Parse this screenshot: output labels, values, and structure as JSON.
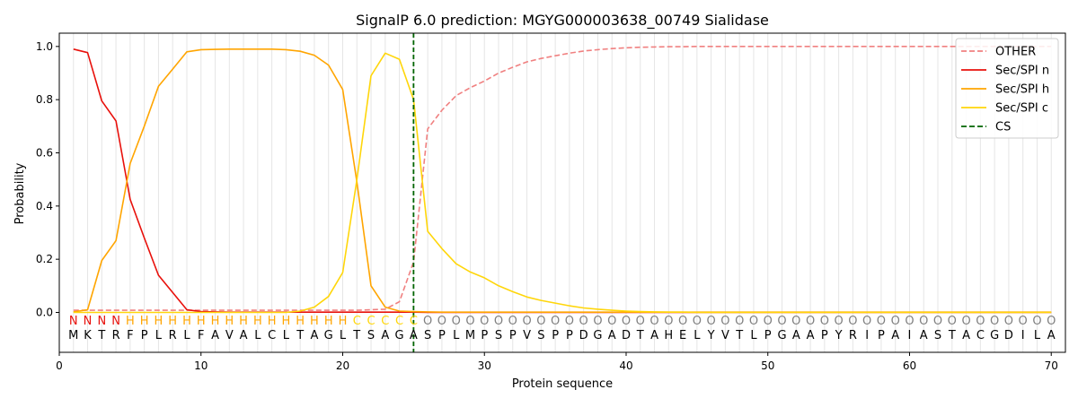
{
  "chart_data": {
    "type": "line",
    "title": "SignalP 6.0 prediction: MGYG000003638_00749 Sialidase",
    "xlabel": "Protein sequence",
    "ylabel": "Probability",
    "xlim": [
      0,
      71
    ],
    "ylim": [
      -0.15,
      1.05
    ],
    "x_ticks": [
      0,
      10,
      20,
      30,
      40,
      50,
      60,
      70
    ],
    "y_ticks": [
      0.0,
      0.2,
      0.4,
      0.6,
      0.8,
      1.0
    ],
    "x_tick_labels": [
      "0",
      "10",
      "20",
      "30",
      "40",
      "50",
      "60",
      "70"
    ],
    "y_tick_labels": [
      "0.0",
      "0.2",
      "0.4",
      "0.6",
      "0.8",
      "1.0"
    ],
    "grid": "vertical lines at each residue",
    "legend_position": "top-right",
    "sequence": [
      "M",
      "K",
      "T",
      "R",
      "F",
      "P",
      "L",
      "R",
      "L",
      "F",
      "A",
      "V",
      "A",
      "L",
      "C",
      "L",
      "T",
      "A",
      "G",
      "L",
      "T",
      "S",
      "A",
      "G",
      "A",
      "S",
      "P",
      "L",
      "M",
      "P",
      "S",
      "P",
      "V",
      "S",
      "P",
      "P",
      "D",
      "G",
      "A",
      "D",
      "T",
      "A",
      "H",
      "E",
      "L",
      "Y",
      "V",
      "T",
      "L",
      "P",
      "G",
      "A",
      "A",
      "P",
      "Y",
      "R",
      "I",
      "P",
      "A",
      "I",
      "A",
      "S",
      "T",
      "A",
      "C",
      "G",
      "D",
      "I",
      "L",
      "A"
    ],
    "labels": [
      "N",
      "N",
      "N",
      "N",
      "H",
      "H",
      "H",
      "H",
      "H",
      "H",
      "H",
      "H",
      "H",
      "H",
      "H",
      "H",
      "H",
      "H",
      "H",
      "H",
      "C",
      "C",
      "C",
      "C",
      "C",
      "O",
      "O",
      "O",
      "O",
      "O",
      "O",
      "O",
      "O",
      "O",
      "O",
      "O",
      "O",
      "O",
      "O",
      "O",
      "O",
      "O",
      "O",
      "O",
      "O",
      "O",
      "O",
      "O",
      "O",
      "O",
      "O",
      "O",
      "O",
      "O",
      "O",
      "O",
      "O",
      "O",
      "O",
      "O",
      "O",
      "O",
      "O",
      "O",
      "O",
      "O",
      "O",
      "O",
      "O",
      "O"
    ],
    "label_colors": {
      "N": "#e8100b",
      "H": "#ffa500",
      "C": "#ffd60a",
      "O": "#7f7f7f"
    },
    "x": [
      1,
      2,
      3,
      4,
      5,
      6,
      7,
      8,
      9,
      10,
      11,
      12,
      13,
      14,
      15,
      16,
      17,
      18,
      19,
      20,
      21,
      22,
      23,
      24,
      25,
      26,
      27,
      28,
      29,
      30,
      31,
      32,
      33,
      34,
      35,
      36,
      37,
      38,
      39,
      40,
      41,
      42,
      43,
      44,
      45,
      46,
      47,
      48,
      49,
      50,
      51,
      52,
      53,
      54,
      55,
      56,
      57,
      58,
      59,
      60,
      61,
      62,
      63,
      64,
      65,
      66,
      67,
      68,
      69,
      70
    ],
    "series": [
      {
        "name": "OTHER",
        "color": "#f08080",
        "dash": "dashed",
        "values": [
          0.008,
          0.008,
          0.008,
          0.008,
          0.008,
          0.008,
          0.008,
          0.008,
          0.008,
          0.008,
          0.008,
          0.008,
          0.008,
          0.008,
          0.008,
          0.008,
          0.008,
          0.008,
          0.008,
          0.008,
          0.008,
          0.01,
          0.012,
          0.04,
          0.19,
          0.69,
          0.76,
          0.815,
          0.845,
          0.87,
          0.9,
          0.922,
          0.942,
          0.955,
          0.965,
          0.975,
          0.983,
          0.988,
          0.992,
          0.995,
          0.997,
          0.998,
          0.999,
          0.999,
          1.0,
          1.0,
          1.0,
          1.0,
          1.0,
          1.0,
          1.0,
          1.0,
          1.0,
          1.0,
          1.0,
          1.0,
          1.0,
          1.0,
          1.0,
          1.0,
          1.0,
          1.0,
          1.0,
          1.0,
          1.0,
          1.0,
          1.0,
          1.0,
          1.0,
          1.0
        ]
      },
      {
        "name": "Sec/SPI n",
        "color": "#e8100b",
        "dash": "solid",
        "values": [
          0.99,
          0.977,
          0.795,
          0.72,
          0.425,
          0.28,
          0.14,
          0.075,
          0.01,
          0.003,
          0.002,
          0.001,
          0.001,
          0.001,
          0.001,
          0.001,
          0.001,
          0.001,
          0.001,
          0.001,
          0.001,
          0.001,
          0.001,
          0.001,
          0.001,
          0.0,
          0.0,
          0.0,
          0.0,
          0.0,
          0.0,
          0.0,
          0.0,
          0.0,
          0.0,
          0.0,
          0.0,
          0.0,
          0.0,
          0.0,
          0.0,
          0.0,
          0.0,
          0.0,
          0.0,
          0.0,
          0.0,
          0.0,
          0.0,
          0.0,
          0.0,
          0.0,
          0.0,
          0.0,
          0.0,
          0.0,
          0.0,
          0.0,
          0.0,
          0.0,
          0.0,
          0.0,
          0.0,
          0.0,
          0.0,
          0.0,
          0.0,
          0.0,
          0.0,
          0.0
        ]
      },
      {
        "name": "Sec/SPI h",
        "color": "#ffa500",
        "dash": "solid",
        "values": [
          0.002,
          0.01,
          0.195,
          0.27,
          0.56,
          0.7,
          0.85,
          0.915,
          0.98,
          0.988,
          0.989,
          0.99,
          0.99,
          0.99,
          0.99,
          0.988,
          0.982,
          0.967,
          0.93,
          0.838,
          0.49,
          0.1,
          0.02,
          0.005,
          0.003,
          0.002,
          0.001,
          0.001,
          0.001,
          0.001,
          0.001,
          0.001,
          0.001,
          0.001,
          0.001,
          0.001,
          0.001,
          0.001,
          0.001,
          0.001,
          0.001,
          0.001,
          0.001,
          0.001,
          0.001,
          0.001,
          0.001,
          0.001,
          0.001,
          0.001,
          0.001,
          0.001,
          0.001,
          0.001,
          0.001,
          0.001,
          0.001,
          0.001,
          0.001,
          0.001,
          0.001,
          0.001,
          0.001,
          0.001,
          0.001,
          0.001,
          0.001,
          0.001,
          0.001,
          0.001
        ]
      },
      {
        "name": "Sec/SPI c",
        "color": "#ffd60a",
        "dash": "solid",
        "values": [
          0.0,
          0.0,
          0.0,
          0.0,
          0.0,
          0.0,
          0.0,
          0.0,
          0.0,
          0.0,
          0.0,
          0.0,
          0.0,
          0.0,
          0.0,
          0.0,
          0.005,
          0.02,
          0.06,
          0.15,
          0.5,
          0.89,
          0.975,
          0.952,
          0.8,
          0.305,
          0.24,
          0.183,
          0.152,
          0.13,
          0.1,
          0.078,
          0.058,
          0.045,
          0.035,
          0.025,
          0.017,
          0.012,
          0.008,
          0.005,
          0.003,
          0.002,
          0.001,
          0.001,
          0.0,
          0.0,
          0.0,
          0.0,
          0.0,
          0.0,
          0.0,
          0.0,
          0.0,
          0.0,
          0.0,
          0.0,
          0.0,
          0.0,
          0.0,
          0.0,
          0.0,
          0.0,
          0.0,
          0.0,
          0.0,
          0.0,
          0.0,
          0.0,
          0.0,
          0.0
        ]
      }
    ],
    "cs": {
      "name": "CS",
      "x": 25,
      "color": "#006400",
      "dash": "dashed"
    }
  }
}
